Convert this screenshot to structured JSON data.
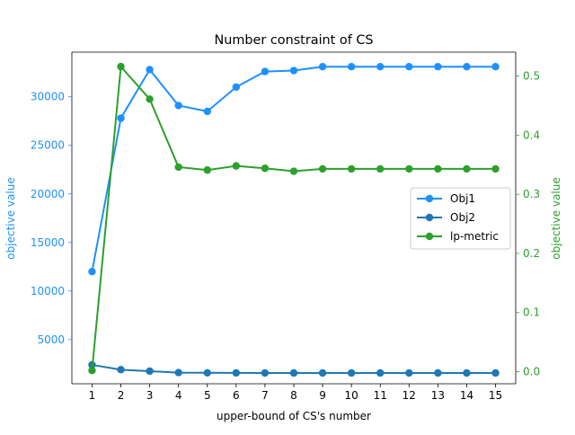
{
  "chart_data": {
    "type": "line",
    "title": "Number constraint of CS",
    "xlabel": "upper-bound of CS's number",
    "ylabel_left": "objective value",
    "ylabel_right": "objective value",
    "x": [
      1,
      2,
      3,
      4,
      5,
      6,
      7,
      8,
      9,
      10,
      11,
      12,
      13,
      14,
      15
    ],
    "x_ticks": [
      "1",
      "2",
      "3",
      "4",
      "5",
      "6",
      "7",
      "8",
      "9",
      "10",
      "11",
      "12",
      "13",
      "14",
      "15"
    ],
    "xlim": [
      0.3,
      15.7
    ],
    "ylim_left": [
      450,
      34600
    ],
    "ylim_right": [
      -0.0205,
      0.5405
    ],
    "yticks_left": [
      5000,
      10000,
      15000,
      20000,
      25000,
      30000
    ],
    "yticks_right": [
      0.0,
      0.1,
      0.2,
      0.3,
      0.4,
      0.5
    ],
    "left_axis_color": "#1e90ff",
    "right_axis_color": "#2ca02c",
    "grid": false,
    "legend_position": "center-right",
    "series": [
      {
        "name": "Obj1",
        "axis": "left",
        "color": "#1e90ff",
        "marker": "circle",
        "values": [
          12000,
          27800,
          32800,
          29100,
          28500,
          31000,
          32600,
          32700,
          33100,
          33100,
          33100,
          33100,
          33100,
          33100,
          33100
        ]
      },
      {
        "name": "Obj2",
        "axis": "left",
        "color": "#1f77b4",
        "marker": "circle",
        "values": [
          2400,
          1900,
          1750,
          1600,
          1580,
          1570,
          1560,
          1560,
          1560,
          1560,
          1560,
          1560,
          1560,
          1560,
          1560
        ]
      },
      {
        "name": "lp-metric",
        "axis": "right",
        "color": "#2ca02c",
        "marker": "circle",
        "values": [
          0.002,
          0.516,
          0.461,
          0.346,
          0.341,
          0.348,
          0.344,
          0.339,
          0.343,
          0.343,
          0.343,
          0.343,
          0.343,
          0.343,
          0.343
        ]
      }
    ]
  }
}
